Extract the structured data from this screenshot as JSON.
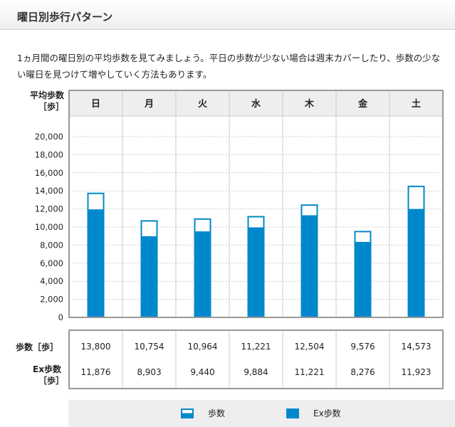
{
  "header": {
    "title": "曜日別歩行パターン"
  },
  "description": "1ヵ月間の曜日別の平均歩数を見てみましょう。平日の歩数が少ない場合は週末カバーしたり、歩数の少ない曜日を見つけて増やしていく方法もあります。",
  "colors": {
    "bar": "#0088cc",
    "grid": "#cccccc",
    "frame": "#999999",
    "header_bg": "#eeeeee"
  },
  "chart_data": {
    "type": "bar",
    "ylabel": "平均歩数",
    "yunit": "［歩］",
    "categories": [
      "日",
      "月",
      "火",
      "水",
      "木",
      "金",
      "土"
    ],
    "ylim": [
      0,
      20000
    ],
    "yticks": [
      0,
      2000,
      4000,
      6000,
      8000,
      10000,
      12000,
      14000,
      16000,
      18000,
      20000
    ],
    "ytick_labels": [
      "0",
      "2,000",
      "4,000",
      "6,000",
      "8,000",
      "10,000",
      "12,000",
      "14,000",
      "16,000",
      "18,000",
      "20,000"
    ],
    "series": [
      {
        "name": "歩数",
        "values": [
          13800,
          10754,
          10964,
          11221,
          12504,
          9576,
          14573
        ],
        "labels": [
          "13,800",
          "10,754",
          "10,964",
          "11,221",
          "12,504",
          "9,576",
          "14,573"
        ]
      },
      {
        "name": "Ex歩数",
        "values": [
          11876,
          8903,
          9440,
          9884,
          11221,
          8276,
          11923
        ],
        "labels": [
          "11,876",
          "8,903",
          "9,440",
          "9,884",
          "11,221",
          "8,276",
          "11,923"
        ]
      }
    ],
    "table": {
      "row1_label": "歩数［歩］",
      "row2_label_line1": "Ex歩数",
      "row2_label_line2": "［歩］"
    },
    "legend": [
      "歩数",
      "Ex歩数"
    ]
  }
}
